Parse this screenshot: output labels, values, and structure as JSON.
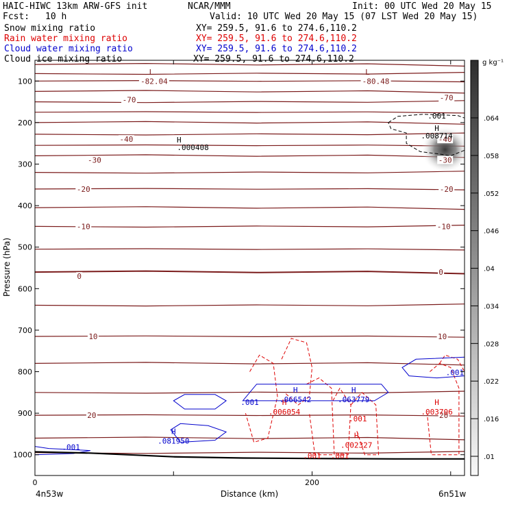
{
  "header": {
    "title_left": "HAIC-HIWC 13km ARW-GFS init",
    "title_center": "NCAR/MMM",
    "init_text": "Init: 00 UTC Wed 20 May 15",
    "fcst_label": "Fcst:",
    "fcst_value": "10 h",
    "valid_text": "Valid: 10 UTC Wed 20 May 15 (07 LST Wed 20 May 15)",
    "fields": [
      {
        "name": "Snow mixing ratio",
        "xy": "XY= 259.5, 91.6 to 274.6,110.2",
        "color": "#000000"
      },
      {
        "name": "Rain water mixing ratio",
        "xy": "XY= 259.5, 91.6 to 274.6,110.2",
        "color": "#dd0000"
      },
      {
        "name": "Cloud water mixing ratio",
        "xy": "XY= 259.5, 91.6 to 274.6,110.2",
        "color": "#0000cc"
      },
      {
        "name": "Cloud ice mixing ratio",
        "xy": "XY= 259.5, 91.6 to 274.6,110.2",
        "color": "#000000"
      }
    ]
  },
  "colors": {
    "temperature": "#7a1a1a",
    "rain": "#dd0000",
    "cloud_water": "#0000cc",
    "ice": "#000000",
    "terrain": "#000000"
  },
  "chart_data": {
    "type": "contour",
    "xlabel": "Distance (km)",
    "ylabel": "Pressure (hPa)",
    "xlim": [
      0,
      310
    ],
    "ylim": [
      1050,
      50
    ],
    "x_ticks": [
      0,
      100,
      200,
      300
    ],
    "x_tick_labels": [
      "0",
      "200"
    ],
    "y_ticks": [
      100,
      200,
      300,
      400,
      500,
      600,
      700,
      800,
      900,
      1000
    ],
    "endpoint_left": "4n53w",
    "endpoint_right": "6n51w",
    "colorbar": {
      "unit": "g kg⁻¹",
      "labels": [
        ".064",
        ".058",
        ".052",
        ".046",
        ".04",
        ".034",
        ".028",
        ".022",
        ".016",
        ".01"
      ]
    },
    "temperature_labels": [
      {
        "text": "-82.04",
        "x": 86,
        "p": 100
      },
      {
        "text": "-80.48",
        "x": 246,
        "p": 100
      },
      {
        "text": "-70",
        "x": 68,
        "p": 145
      },
      {
        "text": "-70",
        "x": 297,
        "p": 140
      },
      {
        "text": "-40",
        "x": 66,
        "p": 240
      },
      {
        "text": "-40",
        "x": 296,
        "p": 240
      },
      {
        "text": "-30",
        "x": 43,
        "p": 290
      },
      {
        "text": "-30",
        "x": 296,
        "p": 290
      },
      {
        "text": "-20",
        "x": 35,
        "p": 360
      },
      {
        "text": "-20",
        "x": 297,
        "p": 360
      },
      {
        "text": "-10",
        "x": 35,
        "p": 450
      },
      {
        "text": "-10",
        "x": 295,
        "p": 450
      },
      {
        "text": "0",
        "x": 32,
        "p": 570
      },
      {
        "text": "0",
        "x": 293,
        "p": 560
      },
      {
        "text": "10",
        "x": 42,
        "p": 715
      },
      {
        "text": "10",
        "x": 294,
        "p": 715
      },
      {
        "text": "20",
        "x": 41,
        "p": 905
      },
      {
        "text": "20",
        "x": 295,
        "p": 905
      }
    ],
    "temperature_lows": [
      {
        "text": "L",
        "x": 84,
        "p": 78
      },
      {
        "text": "L",
        "x": 240,
        "p": 78
      }
    ],
    "snow": {
      "contour_label": ".001",
      "max_label": "H",
      "max_value": ".008714",
      "secondary_max_label": "H",
      "secondary_max_value": ".000408"
    },
    "rain": {
      "max_values": [
        {
          "h": "H",
          "value": ".006054",
          "x": 180,
          "p": 880
        },
        {
          "h": "H",
          "value": ".003706",
          "x": 290,
          "p": 880
        },
        {
          "h": "H",
          "value": ".002327",
          "x": 232,
          "p": 960
        }
      ],
      "contour_labels": [
        ".001",
        ".001",
        ".001"
      ]
    },
    "cloud_water": {
      "max_values": [
        {
          "h": "H",
          "value": ".066542",
          "x": 188,
          "p": 850
        },
        {
          "h": "H",
          "value": ".063779",
          "x": 230,
          "p": 850
        },
        {
          "h": "H",
          "value": ".081950",
          "x": 100,
          "p": 950
        }
      ],
      "contour_labels": [
        ".001",
        ".001",
        ".001"
      ]
    }
  }
}
